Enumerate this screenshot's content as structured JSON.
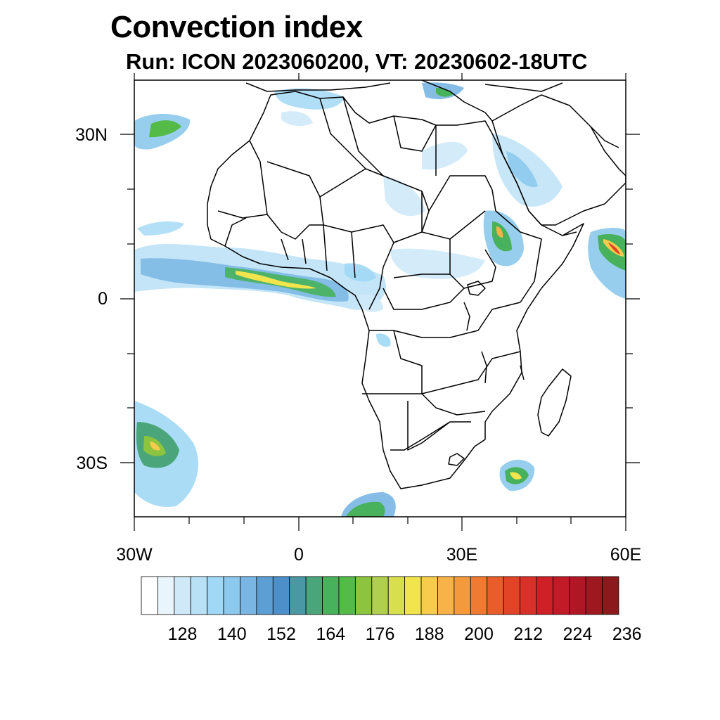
{
  "title": "Convection index",
  "subtitle": "Run: ICON 2023060200,  VT: 20230602-18UTC",
  "map": {
    "region": "Africa",
    "lon_range": [
      -30,
      60
    ],
    "lat_range": [
      -40,
      40
    ],
    "lat_labels": [
      "30N",
      "0",
      "30S"
    ],
    "lon_labels": [
      "30W",
      "0",
      "30E",
      "60E"
    ]
  },
  "colorbar": {
    "levels": [
      120,
      124,
      128,
      132,
      136,
      140,
      144,
      148,
      152,
      156,
      160,
      164,
      168,
      172,
      176,
      180,
      184,
      188,
      192,
      196,
      200,
      204,
      208,
      212,
      216,
      220,
      224,
      228,
      232,
      236
    ],
    "colors": [
      "#ffffff",
      "#e9f5fc",
      "#cfe9f8",
      "#b9e1f6",
      "#a1d8f5",
      "#8cc9ec",
      "#79b6e3",
      "#5c9fd4",
      "#4d8fc9",
      "#4a98a6",
      "#4aa67a",
      "#48b15c",
      "#54ba48",
      "#8cc43f",
      "#b1cf4e",
      "#d8df4f",
      "#f2e44c",
      "#f7cb4c",
      "#f7b347",
      "#f49a3c",
      "#ef7a31",
      "#e95d2b",
      "#e24428",
      "#d8312a",
      "#cf2027",
      "#c21a27",
      "#b01725",
      "#9e1820",
      "#8c1a1c"
    ],
    "labels": [
      "128",
      "140",
      "152",
      "164",
      "176",
      "188",
      "200",
      "212",
      "224",
      "236"
    ]
  }
}
